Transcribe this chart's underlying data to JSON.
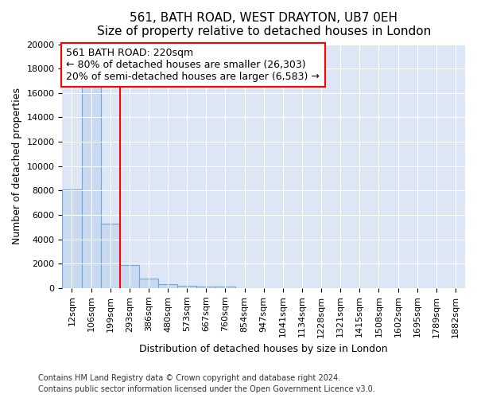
{
  "title1": "561, BATH ROAD, WEST DRAYTON, UB7 0EH",
  "title2": "Size of property relative to detached houses in London",
  "xlabel": "Distribution of detached houses by size in London",
  "ylabel": "Number of detached properties",
  "categories": [
    "12sqm",
    "106sqm",
    "199sqm",
    "293sqm",
    "386sqm",
    "480sqm",
    "573sqm",
    "667sqm",
    "760sqm",
    "854sqm",
    "947sqm",
    "1041sqm",
    "1134sqm",
    "1228sqm",
    "1321sqm",
    "1415sqm",
    "1508sqm",
    "1602sqm",
    "1695sqm",
    "1789sqm",
    "1882sqm"
  ],
  "values": [
    8100,
    16500,
    5300,
    1850,
    750,
    300,
    200,
    150,
    100,
    0,
    0,
    0,
    0,
    0,
    0,
    0,
    0,
    0,
    0,
    0,
    0
  ],
  "bar_color": "#c9d9ef",
  "bar_edge_color": "#6fa8d8",
  "red_line_index": 2,
  "annotation_line1": "561 BATH ROAD: 220sqm",
  "annotation_line2": "← 80% of detached houses are smaller (26,303)",
  "annotation_line3": "20% of semi-detached houses are larger (6,583) →",
  "ylim": [
    0,
    20000
  ],
  "yticks": [
    0,
    2000,
    4000,
    6000,
    8000,
    10000,
    12000,
    14000,
    16000,
    18000,
    20000
  ],
  "footnote1": "Contains HM Land Registry data © Crown copyright and database right 2024.",
  "footnote2": "Contains public sector information licensed under the Open Government Licence v3.0.",
  "plot_bg_color": "#dce6f5",
  "fig_bg_color": "#ffffff",
  "grid_color": "#ffffff",
  "title_fontsize": 11,
  "subtitle_fontsize": 10,
  "axis_label_fontsize": 9,
  "tick_fontsize": 8,
  "annotation_fontsize": 9,
  "footnote_fontsize": 7
}
